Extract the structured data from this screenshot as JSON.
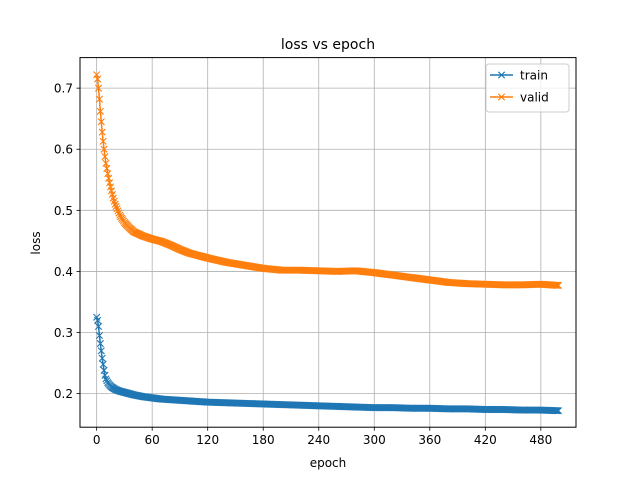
{
  "chart_data": {
    "type": "line",
    "title": "loss vs epoch",
    "xlabel": "epoch",
    "ylabel": "loss",
    "xlim": [
      -18,
      518
    ],
    "ylim": [
      0.145,
      0.75
    ],
    "xticks": [
      0,
      60,
      120,
      180,
      240,
      300,
      360,
      420,
      480
    ],
    "yticks": [
      0.2,
      0.3,
      0.4,
      0.5,
      0.6,
      0.7
    ],
    "ytick_labels": [
      "0.2",
      "0.3",
      "0.4",
      "0.5",
      "0.6",
      "0.7"
    ],
    "grid": true,
    "legend_position": "top-right",
    "marker": "x",
    "series": [
      {
        "name": "train",
        "color": "#1f77b4",
        "x": [
          0,
          1,
          2,
          3,
          4,
          5,
          6,
          7,
          8,
          9,
          10,
          12,
          14,
          16,
          18,
          20,
          25,
          30,
          35,
          40,
          50,
          60,
          70,
          80,
          90,
          100,
          120,
          140,
          160,
          180,
          200,
          220,
          240,
          260,
          280,
          300,
          320,
          340,
          360,
          380,
          400,
          420,
          440,
          460,
          480,
          499
        ],
        "y": [
          0.325,
          0.32,
          0.31,
          0.295,
          0.282,
          0.27,
          0.258,
          0.248,
          0.238,
          0.23,
          0.224,
          0.218,
          0.214,
          0.211,
          0.209,
          0.207,
          0.204,
          0.202,
          0.2,
          0.198,
          0.195,
          0.193,
          0.191,
          0.19,
          0.189,
          0.188,
          0.186,
          0.185,
          0.184,
          0.183,
          0.182,
          0.181,
          0.18,
          0.179,
          0.178,
          0.177,
          0.177,
          0.176,
          0.176,
          0.175,
          0.175,
          0.174,
          0.174,
          0.173,
          0.173,
          0.172
        ]
      },
      {
        "name": "valid",
        "color": "#ff7f0e",
        "x": [
          0,
          1,
          2,
          3,
          4,
          5,
          6,
          7,
          8,
          9,
          10,
          12,
          14,
          16,
          18,
          20,
          25,
          30,
          35,
          40,
          50,
          60,
          70,
          80,
          90,
          100,
          120,
          140,
          160,
          180,
          200,
          220,
          240,
          260,
          280,
          300,
          320,
          340,
          360,
          380,
          400,
          420,
          440,
          460,
          480,
          490,
          499
        ],
        "y": [
          0.722,
          0.715,
          0.7,
          0.682,
          0.662,
          0.645,
          0.628,
          0.613,
          0.6,
          0.588,
          0.577,
          0.56,
          0.545,
          0.532,
          0.52,
          0.51,
          0.492,
          0.48,
          0.472,
          0.465,
          0.458,
          0.453,
          0.449,
          0.443,
          0.436,
          0.43,
          0.422,
          0.415,
          0.41,
          0.405,
          0.402,
          0.402,
          0.401,
          0.4,
          0.401,
          0.398,
          0.394,
          0.39,
          0.386,
          0.382,
          0.38,
          0.379,
          0.378,
          0.378,
          0.379,
          0.378,
          0.377
        ]
      }
    ]
  }
}
